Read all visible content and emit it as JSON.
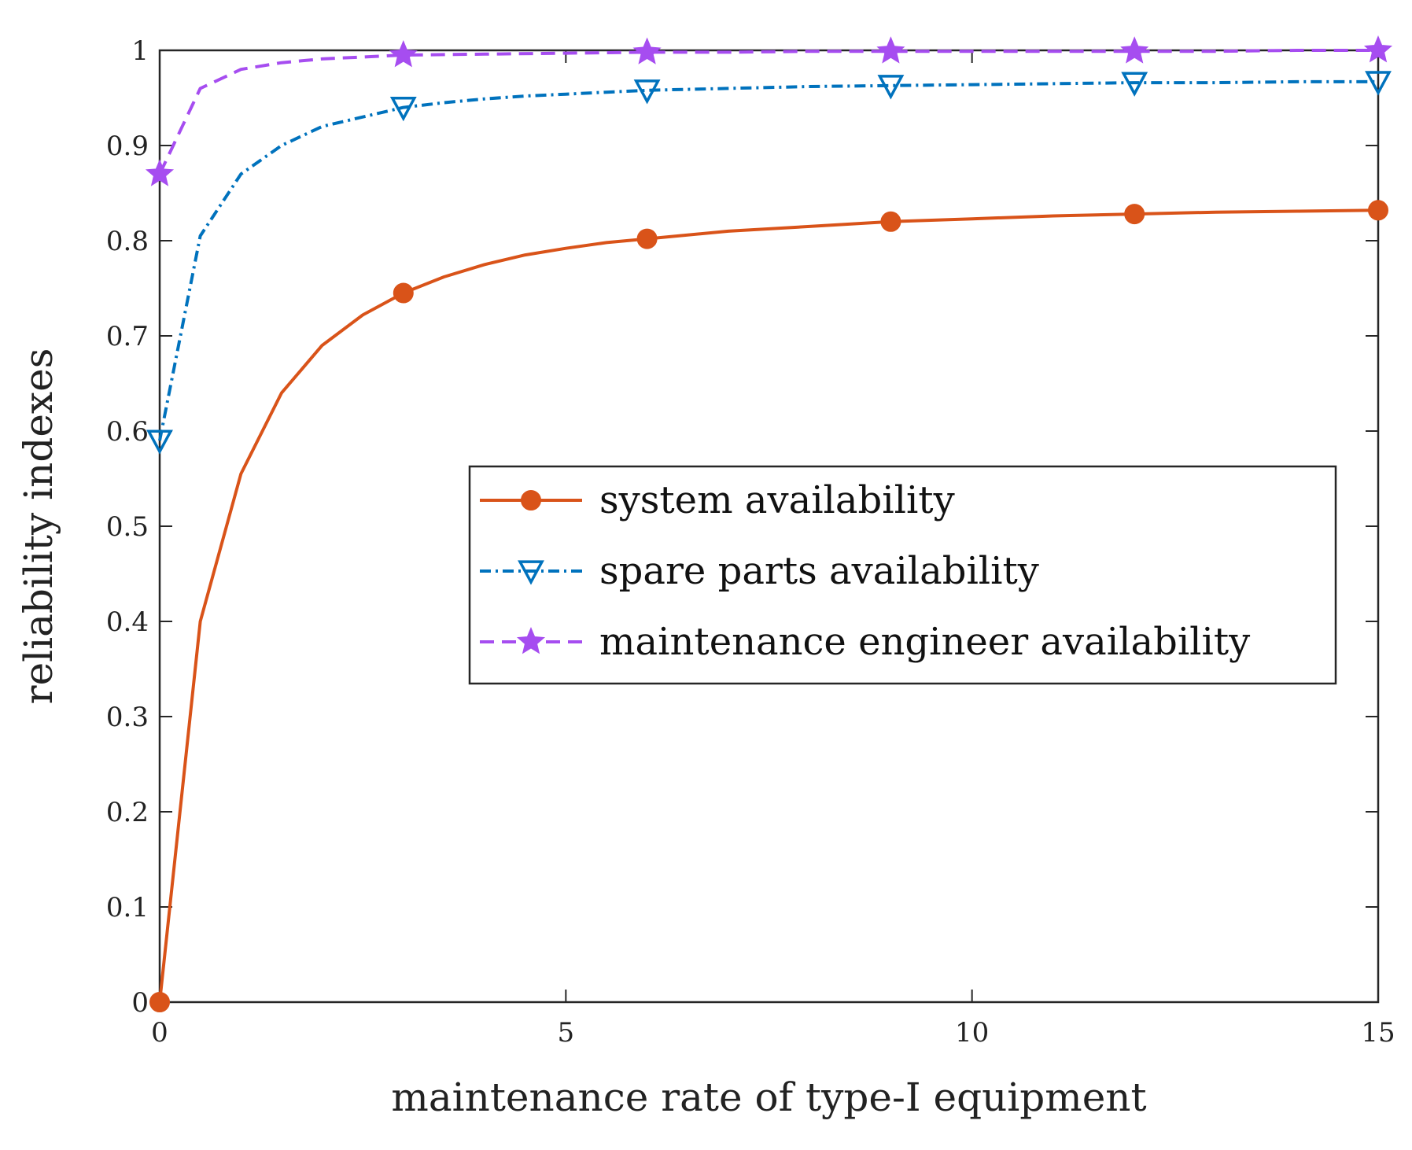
{
  "chart_data": {
    "type": "line",
    "title": "",
    "xlabel": "maintenance rate of type-I equipment",
    "ylabel": "reliability indexes",
    "xlim": [
      0,
      15
    ],
    "ylim": [
      0,
      1
    ],
    "xticks": [
      0,
      5,
      10,
      15
    ],
    "xtick_labels": [
      "0",
      "5",
      "10",
      "15"
    ],
    "yticks": [
      0,
      0.1,
      0.2,
      0.3,
      0.4,
      0.5,
      0.6,
      0.7,
      0.8,
      0.9,
      1
    ],
    "ytick_labels": [
      "0",
      "0.1",
      "0.2",
      "0.3",
      "0.4",
      "0.5",
      "0.6",
      "0.7",
      "0.8",
      "0.9",
      "1"
    ],
    "grid": false,
    "legend_position": "center-right",
    "series": [
      {
        "name": "system availability",
        "color": "#D95319",
        "line_style": "solid",
        "marker": "circle",
        "x": [
          0,
          0.5,
          1,
          1.5,
          2,
          2.5,
          3,
          3.5,
          4,
          4.5,
          5,
          5.5,
          6,
          7,
          8,
          9,
          10,
          11,
          12,
          13,
          14,
          15
        ],
        "y": [
          0,
          0.4,
          0.555,
          0.64,
          0.69,
          0.722,
          0.745,
          0.762,
          0.775,
          0.785,
          0.792,
          0.798,
          0.802,
          0.81,
          0.815,
          0.82,
          0.823,
          0.826,
          0.828,
          0.83,
          0.831,
          0.832
        ],
        "marker_x": [
          0,
          3,
          6,
          9,
          12,
          15
        ],
        "marker_y": [
          0,
          0.745,
          0.802,
          0.82,
          0.828,
          0.832
        ]
      },
      {
        "name": "spare parts availability",
        "color": "#0072BD",
        "line_style": "dashdot",
        "marker": "triangle-down",
        "x": [
          0,
          0.5,
          1,
          1.5,
          2,
          2.5,
          3,
          3.5,
          4,
          4.5,
          5,
          5.5,
          6,
          7,
          8,
          9,
          10,
          11,
          12,
          13,
          14,
          15
        ],
        "y": [
          0.59,
          0.805,
          0.87,
          0.9,
          0.92,
          0.93,
          0.94,
          0.945,
          0.949,
          0.952,
          0.954,
          0.956,
          0.958,
          0.96,
          0.962,
          0.963,
          0.964,
          0.965,
          0.966,
          0.966,
          0.967,
          0.967
        ],
        "marker_x": [
          0,
          3,
          6,
          9,
          12,
          15
        ],
        "marker_y": [
          0.59,
          0.94,
          0.958,
          0.963,
          0.966,
          0.967
        ]
      },
      {
        "name": "maintenance engineer availability",
        "color": "#A64DF0",
        "line_style": "dashed",
        "marker": "star",
        "x": [
          0,
          0.5,
          1,
          1.5,
          2,
          2.5,
          3,
          4,
          5,
          6,
          7,
          8,
          9,
          10,
          11,
          12,
          13,
          14,
          15
        ],
        "y": [
          0.87,
          0.96,
          0.98,
          0.987,
          0.991,
          0.993,
          0.995,
          0.996,
          0.997,
          0.998,
          0.998,
          0.999,
          0.999,
          0.999,
          0.999,
          0.999,
          0.999,
          1.0,
          1.0
        ],
        "marker_x": [
          0,
          3,
          6,
          9,
          12,
          15
        ],
        "marker_y": [
          0.87,
          0.995,
          0.998,
          0.999,
          0.999,
          1.0
        ]
      }
    ]
  }
}
